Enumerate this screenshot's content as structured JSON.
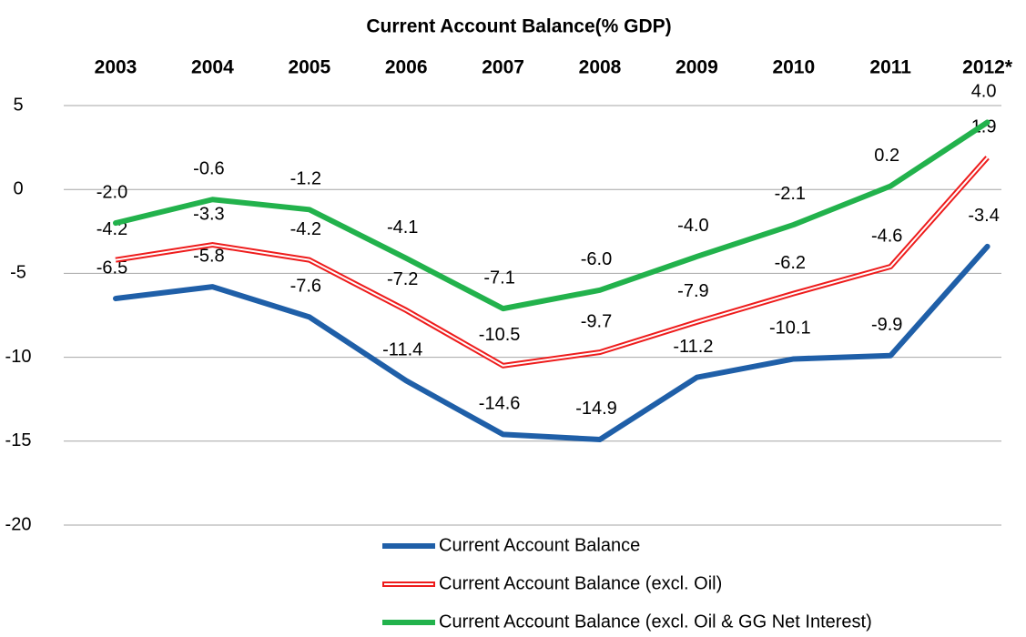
{
  "chart_data": {
    "type": "line",
    "title": "Current Account  Balance(% GDP)",
    "categories": [
      "2003",
      "2004",
      "2005",
      "2006",
      "2007",
      "2008",
      "2009",
      "2010",
      "2011",
      "2012*"
    ],
    "ylim": [
      -20,
      5
    ],
    "yticks": [
      5,
      0,
      -5,
      -10,
      -15,
      -20
    ],
    "grid": true,
    "series": [
      {
        "name": "Current Account Balance",
        "color": "#1f5fa8",
        "style": "solid",
        "values": [
          -6.5,
          -5.8,
          -7.6,
          -11.4,
          -14.6,
          -14.9,
          -11.2,
          -10.1,
          -9.9,
          -3.4
        ],
        "value_labels": [
          "-6.5",
          "-5.8",
          "-7.6",
          "-11.4",
          "-14.6",
          "-14.9",
          "-11.2",
          "-10.1",
          "-9.9",
          "-3.4"
        ]
      },
      {
        "name": "Current Account Balance (excl. Oil)",
        "color": "#ee1c1c",
        "style": "double",
        "values": [
          -4.2,
          -3.3,
          -4.2,
          -7.2,
          -10.5,
          -9.7,
          -7.9,
          -6.2,
          -4.6,
          1.9
        ],
        "value_labels": [
          "-4.2",
          "-3.3",
          "-4.2",
          "-7.2",
          "-10.5",
          "-9.7",
          "-7.9",
          "-6.2",
          "-4.6",
          "1.9"
        ]
      },
      {
        "name": "Current Account Balance (excl. Oil & GG Net Interest)",
        "color": "#22b24c",
        "style": "solid",
        "values": [
          -2.0,
          -0.6,
          -1.2,
          -4.1,
          -7.1,
          -6.0,
          -4.0,
          -2.1,
          0.2,
          4.0
        ],
        "value_labels": [
          "-2.0",
          "-0.6",
          "-1.2",
          "-4.1",
          "-7.1",
          "-6.0",
          "-4.0",
          "-2.1",
          "0.2",
          "4.0"
        ]
      }
    ]
  }
}
